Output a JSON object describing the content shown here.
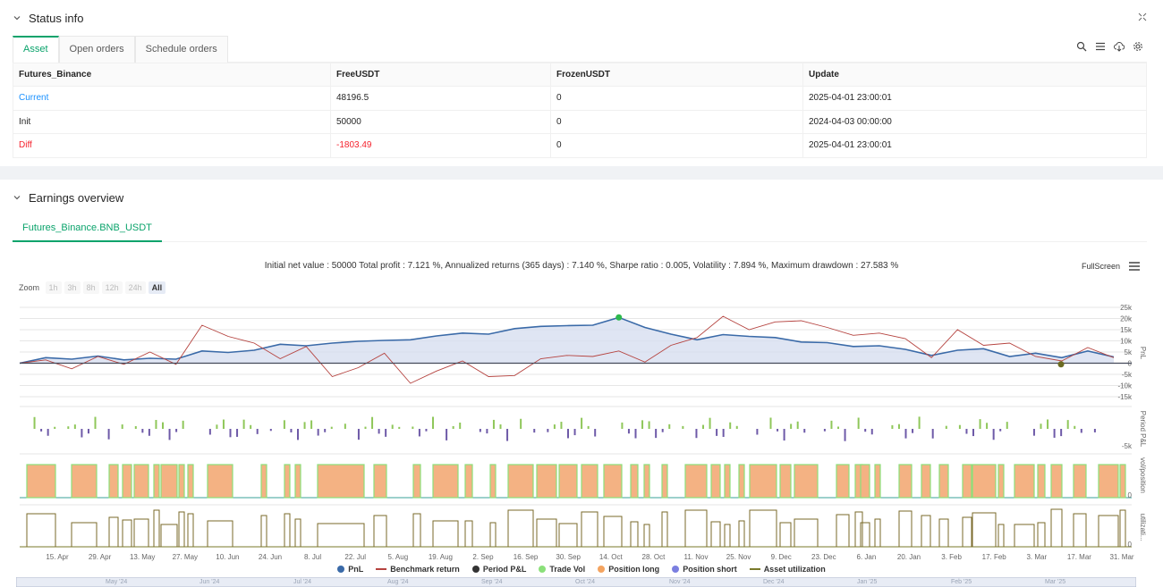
{
  "status": {
    "title": "Status info",
    "tabs": [
      "Asset",
      "Open orders",
      "Schedule orders"
    ],
    "table": {
      "headers": [
        "Futures_Binance",
        "FreeUSDT",
        "FrozenUSDT",
        "Update"
      ],
      "rows": [
        [
          "Current",
          "48196.5",
          "0",
          "2025-04-01 23:00:01"
        ],
        [
          "Init",
          "50000",
          "0",
          "2024-04-03 00:00:00"
        ],
        [
          "Diff",
          "-1803.49",
          "0",
          "2025-04-01 23:00:01"
        ]
      ]
    }
  },
  "earnings": {
    "title": "Earnings overview",
    "tab": "Futures_Binance.BNB_USDT",
    "summary": "Initial net value : 50000 Total profit : 7.121 %, Annualized returns (365 days) : 7.140 %, Sharpe ratio : 0.005, Volatility : 7.894 %, Maximum drawdown : 27.583 %",
    "fullscreen": "FullScreen",
    "zoom_label": "Zoom",
    "zoom_buttons": [
      "1h",
      "3h",
      "8h",
      "12h",
      "24h",
      "All"
    ],
    "x_ticks": [
      "15. Apr",
      "29. Apr",
      "13. May",
      "27. May",
      "10. Jun",
      "24. Jun",
      "8. Jul",
      "22. Jul",
      "5. Aug",
      "19. Aug",
      "2. Sep",
      "16. Sep",
      "30. Sep",
      "14. Oct",
      "28. Oct",
      "11. Nov",
      "25. Nov",
      "9. Dec",
      "23. Dec",
      "6. Jan",
      "20. Jan",
      "3. Feb",
      "17. Feb",
      "3. Mar",
      "17. Mar",
      "31. Mar"
    ],
    "navigator_ticks": [
      "May '24",
      "Jun '24",
      "Jul '24",
      "Aug '24",
      "Sep '24",
      "Oct '24",
      "Nov '24",
      "Dec '24",
      "Jan '25",
      "Feb '25",
      "Mar '25"
    ],
    "pnl_axis": [
      "25k",
      "20k",
      "15k",
      "10k",
      "5k",
      "0",
      "-5k",
      "-10k",
      "-15k"
    ],
    "pnl_axis_title": "PnL",
    "period_axis": [
      "-5k"
    ],
    "period_axis_title": "Period P&L",
    "vol_axis": [
      "0"
    ],
    "vol_axis_title": "vol/position",
    "util_axis": [
      "0"
    ],
    "util_axis_title": "utilizati...",
    "legend": [
      {
        "label": "PnL",
        "color": "#3a6aa8",
        "shape": "dot"
      },
      {
        "label": "Benchmark return",
        "color": "#b5433f",
        "shape": "line"
      },
      {
        "label": "Period P&L",
        "color": "#333333",
        "shape": "dot"
      },
      {
        "label": "Trade Vol",
        "color": "#8be07a",
        "shape": "dot"
      },
      {
        "label": "Position long",
        "color": "#f4a460",
        "shape": "dot"
      },
      {
        "label": "Position short",
        "color": "#7b7fe0",
        "shape": "dot"
      },
      {
        "label": "Asset utilization",
        "color": "#7a7a2a",
        "shape": "line"
      }
    ],
    "chart_data": {
      "type": "line",
      "title": "",
      "ylabel": "PnL",
      "ylim": [
        -15000,
        25000
      ],
      "series": [
        {
          "name": "PnL",
          "values": [
            0,
            2500,
            1800,
            3200,
            1500,
            2200,
            1800,
            5500,
            4800,
            5800,
            8500,
            7800,
            9000,
            9800,
            10200,
            10500,
            12200,
            13500,
            13000,
            15500,
            16500,
            16800,
            17000,
            20500,
            16000,
            13000,
            10500,
            12800,
            12000,
            11500,
            9500,
            9200,
            7500,
            7800,
            6200,
            3500,
            5800,
            6500,
            3000,
            4500,
            2500,
            5500,
            2800
          ]
        },
        {
          "name": "Benchmark return",
          "values": [
            0,
            1500,
            -2500,
            3000,
            -500,
            5000,
            -500,
            17000,
            12000,
            9000,
            2000,
            7500,
            -6000,
            -2000,
            4500,
            -9000,
            -3500,
            1000,
            -6000,
            -5500,
            2000,
            3500,
            3000,
            5500,
            500,
            8000,
            11500,
            21000,
            15000,
            18500,
            19000,
            16000,
            12500,
            13500,
            11000,
            2500,
            15000,
            8000,
            9000,
            3000,
            1000,
            7000,
            2500
          ]
        }
      ]
    }
  }
}
